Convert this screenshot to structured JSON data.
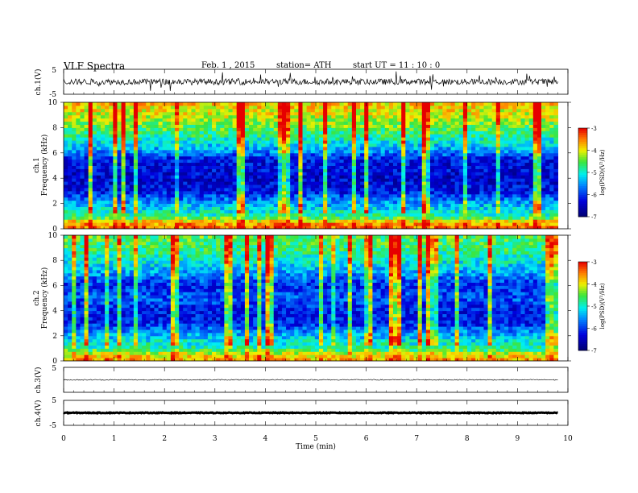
{
  "header": {
    "title": "VLF  Spectra",
    "date": "Feb. 1  , 2015",
    "station": "station= ATH",
    "start": "start  UT  =    11 : 10 : 0"
  },
  "chart_data": [
    {
      "type": "line",
      "id": "ch1-waveform",
      "ylabel": "ch.1(V)",
      "ylim": [
        -5,
        5
      ],
      "yticks": [
        "5",
        "-5"
      ],
      "xlim": [
        0,
        10
      ],
      "data_end_min": 9.8,
      "series": [
        {
          "values_description": null,
          "level_v": 0,
          "noise_amplitude_v": 1.2,
          "color": "#000000"
        }
      ]
    },
    {
      "type": "heatmap",
      "id": "ch1-spectrogram",
      "ylabel": "ch.1\nFrequency  (kHz)",
      "ylim": [
        0,
        10
      ],
      "yticks": [
        "0",
        "2",
        "4",
        "6",
        "8",
        "10"
      ],
      "xlim": [
        0,
        10
      ],
      "data_end_min": 9.8,
      "colorbar": {
        "label": "log(PSD)(V²/Hz)",
        "range": [
          -7,
          -3
        ],
        "ticks": [
          "-3",
          "-4",
          "-5",
          "-6",
          "-7"
        ]
      },
      "profile_log_psd": [
        [
          0,
          -3.4
        ],
        [
          0.5,
          -3.6
        ],
        [
          1,
          -4.8
        ],
        [
          2,
          -5.4
        ],
        [
          3,
          -6.2
        ],
        [
          4,
          -6.4
        ],
        [
          5.5,
          -6.2
        ],
        [
          6.2,
          -5.5
        ],
        [
          7,
          -5.0
        ],
        [
          8,
          -4.5
        ],
        [
          9,
          -4.1
        ],
        [
          10,
          -3.8
        ]
      ]
    },
    {
      "type": "heatmap",
      "id": "ch2-spectrogram",
      "ylabel": "ch.2\nFrequency  (kHz)",
      "ylim": [
        0,
        10
      ],
      "yticks": [
        "0",
        "2",
        "4",
        "6",
        "8",
        "10"
      ],
      "xlim": [
        0,
        10
      ],
      "data_end_min": 9.8,
      "colorbar": {
        "label": "log(PSD)(V²/Hz)",
        "range": [
          -7,
          -3
        ],
        "ticks": [
          "-3",
          "-4",
          "-5",
          "-6",
          "-7"
        ]
      },
      "profile_log_psd": [
        [
          0,
          -3.6
        ],
        [
          0.5,
          -4.0
        ],
        [
          1,
          -4.8
        ],
        [
          2,
          -5.3
        ],
        [
          3,
          -6.1
        ],
        [
          4,
          -6.2
        ],
        [
          5,
          -5.8
        ],
        [
          6,
          -6.1
        ],
        [
          7,
          -5.5
        ],
        [
          8,
          -5.0
        ],
        [
          9,
          -4.7
        ],
        [
          10,
          -4.5
        ]
      ]
    },
    {
      "type": "line",
      "id": "ch3-waveform",
      "ylabel": "ch.3(V)",
      "ylim": [
        -5,
        5
      ],
      "yticks": [
        "5"
      ],
      "xlim": [
        0,
        10
      ],
      "data_end_min": 9.8,
      "series": [
        {
          "level_v": 0,
          "noise_amplitude_v": 0.2,
          "color": "#000000"
        }
      ]
    },
    {
      "type": "line",
      "id": "ch4-waveform",
      "ylabel": "ch.4(V)",
      "ylim": [
        -5,
        5
      ],
      "yticks": [
        "5",
        "-5"
      ],
      "xlim": [
        0,
        10
      ],
      "data_end_min": 9.8,
      "series": [
        {
          "level_v": 0,
          "noise_amplitude_v": 0.15,
          "color": "#000000"
        }
      ]
    }
  ],
  "xaxis": {
    "label": "Time  (min)",
    "ticks": [
      "0",
      "1",
      "2",
      "3",
      "4",
      "5",
      "6",
      "7",
      "8",
      "9",
      "10"
    ]
  }
}
